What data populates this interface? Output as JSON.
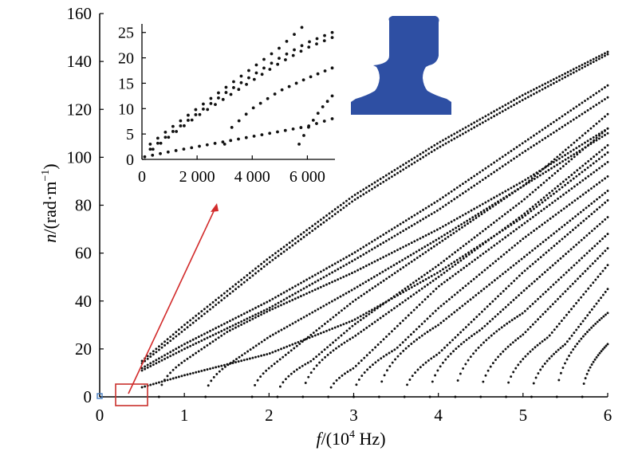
{
  "chart_data": [
    {
      "type": "scatter",
      "title": "",
      "xlabel_parts": [
        "f",
        "/(10",
        "4",
        " Hz)"
      ],
      "ylabel_parts": [
        "n",
        "/(rad·m",
        "−1",
        ")"
      ],
      "xlim": [
        0,
        6
      ],
      "ylim": [
        0,
        160
      ],
      "xticks": [
        "0",
        "1",
        "2",
        "3",
        "4",
        "5",
        "6"
      ],
      "yticks": [
        "0",
        "20",
        "40",
        "60",
        "80",
        "100",
        "120",
        "140",
        "160"
      ],
      "grid": false,
      "marker_color": "#111111",
      "series": [
        {
          "kind": "propagating",
          "cutoff": 0,
          "values": [
            [
              0.5,
              15
            ],
            [
              1,
              30
            ],
            [
              2,
              58
            ],
            [
              3,
              84
            ],
            [
              4,
              106
            ],
            [
              5,
              126
            ],
            [
              6,
              144
            ]
          ]
        },
        {
          "kind": "propagating",
          "cutoff": 0,
          "values": [
            [
              0.5,
              14
            ],
            [
              1,
              28
            ],
            [
              2,
              56
            ],
            [
              3,
              82
            ],
            [
              4,
              104
            ],
            [
              5,
              124
            ],
            [
              6,
              143
            ]
          ]
        },
        {
          "kind": "propagating",
          "cutoff": 0,
          "values": [
            [
              0.5,
              12
            ],
            [
              1,
              22
            ],
            [
              2,
              40
            ],
            [
              3,
              60
            ],
            [
              4,
              82
            ],
            [
              5,
              106
            ],
            [
              6,
              130
            ]
          ]
        },
        {
          "kind": "propagating",
          "cutoff": 0,
          "values": [
            [
              0.5,
              11
            ],
            [
              1,
              20
            ],
            [
              2,
              37
            ],
            [
              3,
              57
            ],
            [
              4,
              78
            ],
            [
              5,
              102
            ],
            [
              6,
              125
            ]
          ]
        },
        {
          "kind": "propagating",
          "cutoff": 0,
          "values": [
            [
              0.5,
              4
            ],
            [
              1,
              9
            ],
            [
              2,
              18
            ],
            [
              3,
              32
            ],
            [
              4,
              52
            ],
            [
              5,
              75
            ],
            [
              6,
              102
            ]
          ]
        },
        {
          "kind": "cutoff",
          "cutoff": 0.7,
          "values": [
            [
              0.7,
              0
            ],
            [
              1,
              15
            ],
            [
              1.5,
              27
            ],
            [
              2,
              36
            ],
            [
              3,
              52
            ],
            [
              4,
              70
            ],
            [
              5,
              90
            ],
            [
              6,
              112
            ]
          ]
        },
        {
          "kind": "cutoff",
          "cutoff": 1.25,
          "values": [
            [
              1.25,
              0
            ],
            [
              1.5,
              13
            ],
            [
              2,
              25
            ],
            [
              3,
              45
            ],
            [
              4,
              66
            ],
            [
              5,
              88
            ],
            [
              6,
              110
            ]
          ]
        },
        {
          "kind": "cutoff",
          "cutoff": 1.8,
          "values": [
            [
              1.8,
              0
            ],
            [
              2,
              12
            ],
            [
              3,
              40
            ],
            [
              4,
              64
            ],
            [
              5,
              88
            ],
            [
              6,
              118
            ]
          ]
        },
        {
          "kind": "cutoff",
          "cutoff": 2.1,
          "values": [
            [
              2.1,
              0
            ],
            [
              2.5,
              15
            ],
            [
              3,
              30
            ],
            [
              4,
              55
            ],
            [
              5,
              82
            ],
            [
              6,
              112
            ]
          ]
        },
        {
          "kind": "cutoff",
          "cutoff": 2.4,
          "values": [
            [
              2.4,
              0
            ],
            [
              3,
              25
            ],
            [
              4,
              50
            ],
            [
              5,
              76
            ],
            [
              6,
              105
            ]
          ]
        },
        {
          "kind": "cutoff",
          "cutoff": 2.7,
          "values": [
            [
              2.7,
              0
            ],
            [
              3,
              12
            ],
            [
              4,
              46
            ],
            [
              5,
              72
            ],
            [
              6,
              98
            ]
          ]
        },
        {
          "kind": "cutoff",
          "cutoff": 3.0,
          "values": [
            [
              3.0,
              0
            ],
            [
              3.5,
              20
            ],
            [
              4,
              37
            ],
            [
              5,
              66
            ],
            [
              6,
              92
            ]
          ]
        },
        {
          "kind": "cutoff",
          "cutoff": 3.3,
          "values": [
            [
              3.3,
              0
            ],
            [
              4,
              30
            ],
            [
              5,
              58
            ],
            [
              6,
              86
            ]
          ]
        },
        {
          "kind": "cutoff",
          "cutoff": 3.6,
          "values": [
            [
              3.6,
              0
            ],
            [
              4,
              18
            ],
            [
              5,
              52
            ],
            [
              6,
              82
            ]
          ]
        },
        {
          "kind": "cutoff",
          "cutoff": 3.9,
          "values": [
            [
              3.9,
              0
            ],
            [
              4.5,
              28
            ],
            [
              5,
              44
            ],
            [
              6,
              75
            ]
          ]
        },
        {
          "kind": "cutoff",
          "cutoff": 4.2,
          "values": [
            [
              4.2,
              0
            ],
            [
              5,
              35
            ],
            [
              6,
              68
            ]
          ]
        },
        {
          "kind": "cutoff",
          "cutoff": 4.5,
          "values": [
            [
              4.5,
              0
            ],
            [
              5,
              26
            ],
            [
              6,
              62
            ]
          ]
        },
        {
          "kind": "cutoff",
          "cutoff": 4.8,
          "values": [
            [
              4.8,
              0
            ],
            [
              5.3,
              25
            ],
            [
              6,
              55
            ]
          ]
        },
        {
          "kind": "cutoff",
          "cutoff": 5.1,
          "values": [
            [
              5.1,
              0
            ],
            [
              5.5,
              22
            ],
            [
              6,
              45
            ]
          ]
        },
        {
          "kind": "cutoff",
          "cutoff": 5.4,
          "values": [
            [
              5.4,
              0
            ],
            [
              6,
              35
            ]
          ]
        },
        {
          "kind": "cutoff",
          "cutoff": 5.7,
          "values": [
            [
              5.7,
              0
            ],
            [
              6,
              22
            ]
          ]
        }
      ]
    },
    {
      "type": "scatter",
      "title": "",
      "xlim": [
        0,
        7000
      ],
      "ylim": [
        0,
        27
      ],
      "xticks": [
        "0",
        "2 000",
        "4 000",
        "6 000"
      ],
      "yticks": [
        "0",
        "5",
        "10",
        "15",
        "20",
        "25"
      ],
      "grid": false,
      "marker_color": "#111111",
      "series": [
        {
          "values": [
            [
              300,
              3
            ],
            [
              1000,
              6
            ],
            [
              2000,
              10
            ],
            [
              3000,
              14
            ],
            [
              4000,
              18
            ],
            [
              5000,
              22
            ],
            [
              5800,
              26
            ]
          ]
        },
        {
          "values": [
            [
              300,
              2
            ],
            [
              1000,
              5
            ],
            [
              2000,
              9
            ],
            [
              3000,
              13
            ],
            [
              4000,
              16.5
            ],
            [
              5000,
              20
            ],
            [
              6000,
              23
            ],
            [
              6900,
              25
            ]
          ]
        },
        {
          "values": [
            [
              400,
              2
            ],
            [
              1000,
              4.5
            ],
            [
              2000,
              8.5
            ],
            [
              3000,
              12
            ],
            [
              4000,
              15.5
            ],
            [
              5000,
              19
            ],
            [
              6000,
              22
            ],
            [
              6900,
              24
            ]
          ]
        },
        {
          "values": [
            [
              3000,
              3
            ],
            [
              3200,
              6
            ],
            [
              4000,
              10
            ],
            [
              5000,
              13.5
            ],
            [
              6000,
              16
            ],
            [
              6900,
              18
            ]
          ]
        },
        {
          "values": [
            [
              100,
              0.5
            ],
            [
              1000,
              1.5
            ],
            [
              2000,
              2.5
            ],
            [
              3000,
              3.5
            ],
            [
              4000,
              4.5
            ],
            [
              5000,
              5.5
            ],
            [
              6000,
              6.5
            ],
            [
              6900,
              8
            ]
          ]
        },
        {
          "values": [
            [
              5700,
              3
            ],
            [
              6000,
              6
            ],
            [
              6500,
              10
            ],
            [
              6900,
              12.5
            ]
          ]
        }
      ]
    }
  ],
  "rail_color": "#2e4fa3",
  "arrow_color": "#d22b2b",
  "zoom_box_color": "#c9302c",
  "origin_marker_color": "#4a7fc1"
}
